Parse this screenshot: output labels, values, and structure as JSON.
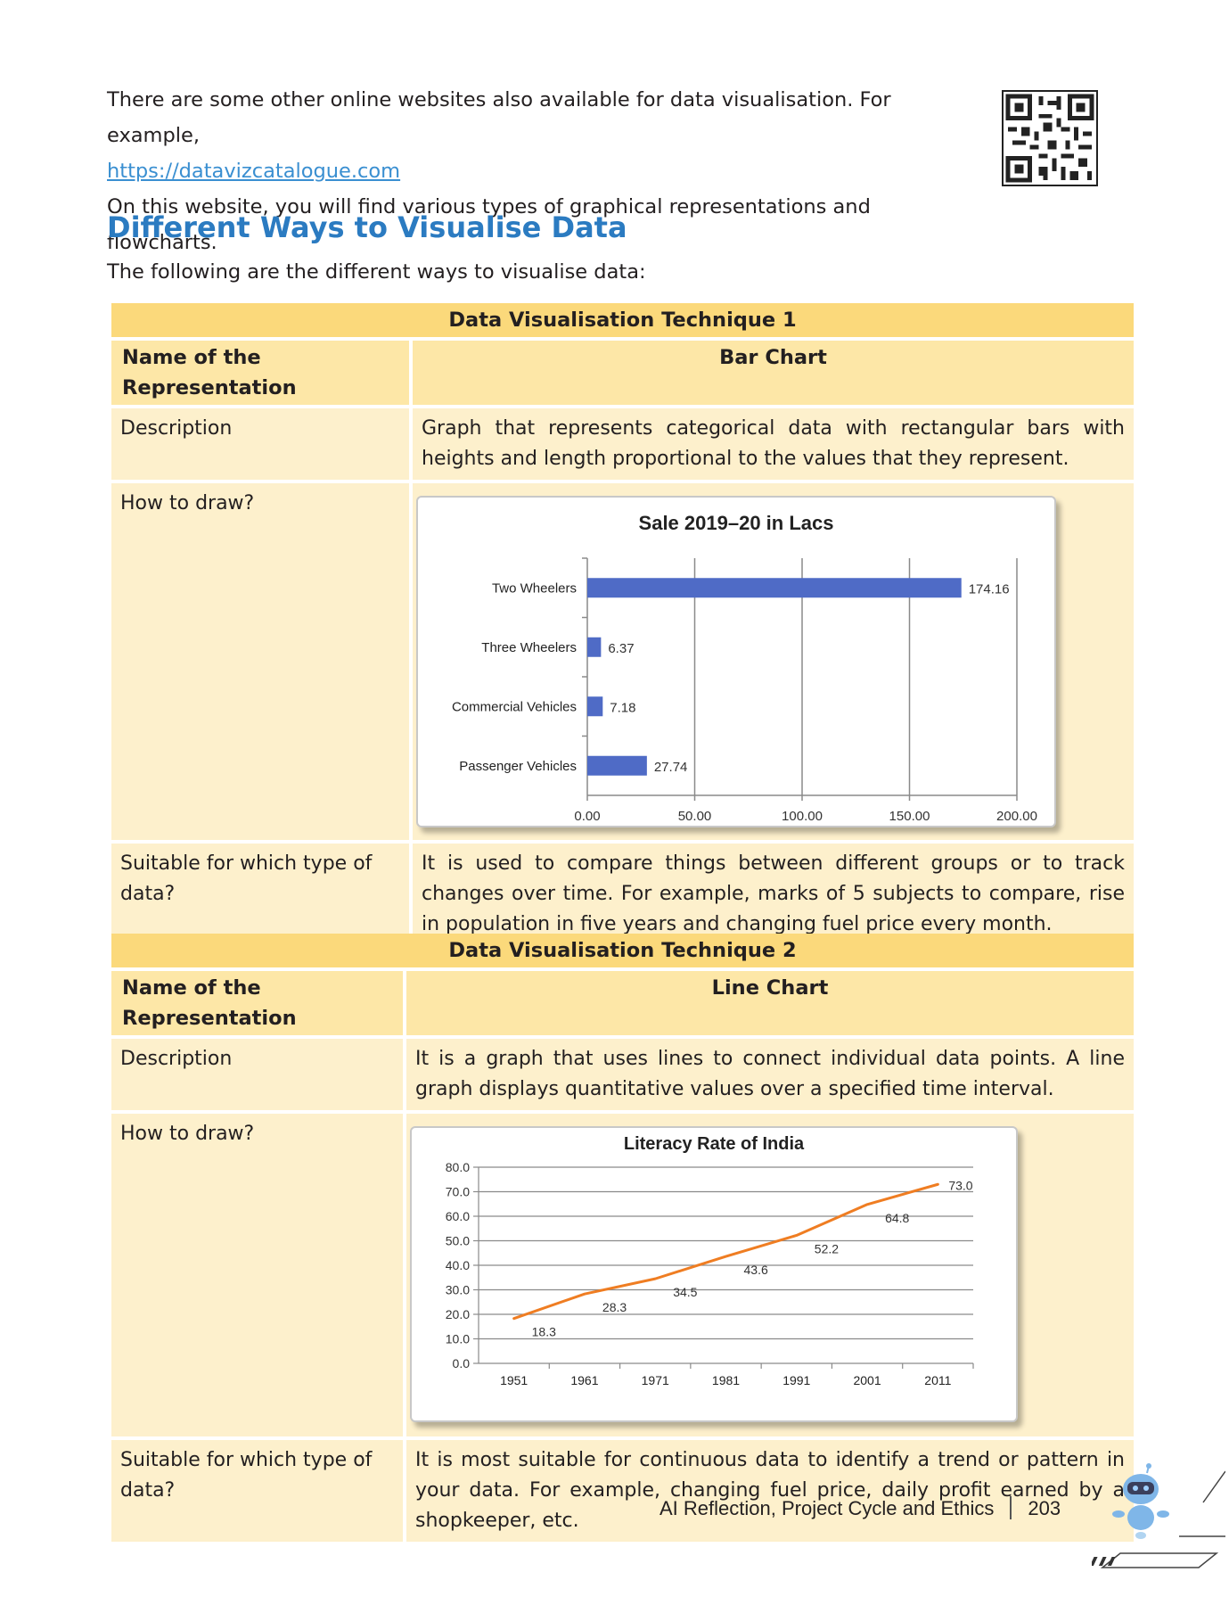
{
  "intro": {
    "line1": "There are some other online websites also available for data visualisation. For example,",
    "link": "https://datavizcatalogue.com",
    "line3": "On this website, you will find various types of graphical representations and flowcharts."
  },
  "section": {
    "heading": "Different Ways to Visualise Data",
    "lead": "The following are the different ways to visualise data:"
  },
  "technique1": {
    "title": "Data Visualisation Technique 1",
    "name_label": "Name of the Representation",
    "name_value": "Bar Chart",
    "desc_label": "Description",
    "desc_value": "Graph that represents categorical data with rectangular bars with heights and length proportional to the values that they represent.",
    "draw_label": "How to draw?",
    "suit_label": "Suitable for which type of data?",
    "suit_value": "It is used to compare things between different groups or to track changes over time. For example, marks of 5 subjects to compare, rise in population in five years and changing fuel price every month."
  },
  "technique2": {
    "title": "Data Visualisation Technique 2",
    "name_label": "Name of the Representation",
    "name_value": "Line Chart",
    "desc_label": "Description",
    "desc_value": "It is a graph that uses lines to connect individual data points. A line graph displays quantitative values over a specified time interval.",
    "draw_label": "How to draw?",
    "suit_label": "Suitable for which type of data?",
    "suit_value": "It is most suitable for continuous data to identify a trend or pattern in your data. For example, changing fuel price, daily profit earned by a shopkeeper, etc."
  },
  "chart_data": [
    {
      "type": "bar",
      "orientation": "horizontal",
      "title": "Sale 2019–20 in Lacs",
      "categories": [
        "Two Wheelers",
        "Three Wheelers",
        "Commercial Vehicles",
        "Passenger Vehicles"
      ],
      "values": [
        174.16,
        6.37,
        7.18,
        27.74
      ],
      "value_labels": [
        "174.16",
        "6.37",
        "7.18",
        "27.74"
      ],
      "xlim": [
        0,
        200
      ],
      "xticks": [
        "0.00",
        "50.00",
        "100.00",
        "150.00",
        "200.00"
      ],
      "grid": true,
      "bar_color": "#4f6bc6"
    },
    {
      "type": "line",
      "title": "Literacy Rate of India",
      "x": [
        "1951",
        "1961",
        "1971",
        "1981",
        "1991",
        "2001",
        "2011"
      ],
      "values": [
        18.3,
        28.3,
        34.5,
        43.6,
        52.2,
        64.8,
        73.0
      ],
      "value_labels": [
        "18.3",
        "28.3",
        "34.5",
        "43.6",
        "52.2",
        "64.8",
        "73.0"
      ],
      "ylim": [
        0,
        80
      ],
      "yticks": [
        "0.0",
        "10.0",
        "20.0",
        "30.0",
        "40.0",
        "50.0",
        "60.0",
        "70.0",
        "80.0"
      ],
      "grid": true,
      "line_color": "#ef7d22"
    }
  ],
  "footer": {
    "book_title": "AI Reflection, Project Cycle and Ethics",
    "page_number": "203"
  }
}
